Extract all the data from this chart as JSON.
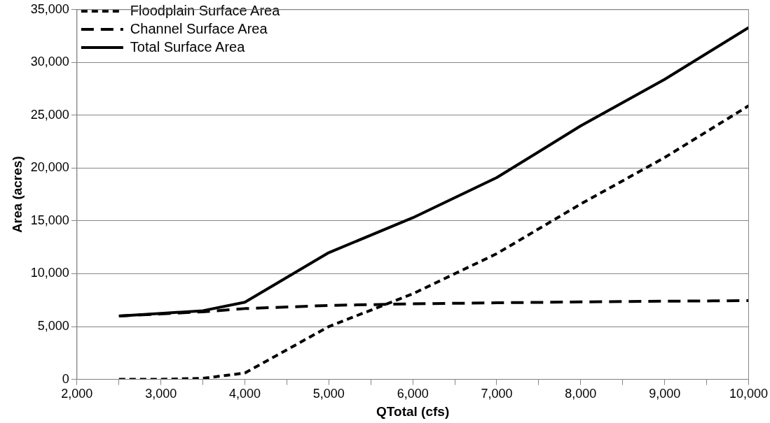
{
  "chart_data": {
    "type": "line",
    "xlabel": "QTotal (cfs)",
    "ylabel": "Area (acres)",
    "x": [
      2500,
      3000,
      3500,
      4000,
      5000,
      6000,
      7000,
      8000,
      9000,
      10000
    ],
    "series": [
      {
        "name": "Floodplain Surface Area",
        "color": "#000000",
        "line_style": "dotted",
        "values": [
          0,
          0,
          100,
          600,
          5000,
          8100,
          11900,
          16600,
          21000,
          25900
        ]
      },
      {
        "name": "Channel Surface Area",
        "color": "#000000",
        "line_style": "dashed",
        "values": [
          6000,
          6200,
          6400,
          6700,
          7000,
          7150,
          7250,
          7330,
          7400,
          7450
        ]
      },
      {
        "name": "Total Surface Area",
        "color": "#000000",
        "line_style": "solid",
        "values": [
          6000,
          6250,
          6500,
          7300,
          12000,
          15300,
          19100,
          24000,
          28400,
          33300
        ]
      }
    ],
    "xlim": [
      2000,
      10000
    ],
    "xticks": [
      {
        "value": 2000,
        "label": "2,000"
      },
      {
        "value": 2500,
        "label": null
      },
      {
        "value": 3000,
        "label": "3,000"
      },
      {
        "value": 3500,
        "label": null
      },
      {
        "value": 4000,
        "label": "4,000"
      },
      {
        "value": 4500,
        "label": null
      },
      {
        "value": 5000,
        "label": "5,000"
      },
      {
        "value": 5500,
        "label": null
      },
      {
        "value": 6000,
        "label": "6,000"
      },
      {
        "value": 6500,
        "label": null
      },
      {
        "value": 7000,
        "label": "7,000"
      },
      {
        "value": 7500,
        "label": null
      },
      {
        "value": 8000,
        "label": "8,000"
      },
      {
        "value": 8500,
        "label": null
      },
      {
        "value": 9000,
        "label": "9,000"
      },
      {
        "value": 9500,
        "label": null
      },
      {
        "value": 10000,
        "label": "10,000"
      }
    ],
    "ylim": [
      0,
      35000
    ],
    "yticks": [
      0,
      {
        "value": 5000,
        "label": "5,000"
      },
      {
        "value": 10000,
        "label": "10,000"
      },
      {
        "value": 15000,
        "label": "15,000"
      },
      {
        "value": 20000,
        "label": "20,000"
      },
      {
        "value": 25000,
        "label": "25,000"
      },
      {
        "value": 30000,
        "label": "30,000"
      },
      {
        "value": 35000,
        "label": "35,000"
      }
    ],
    "grid": "y",
    "legend": "top left",
    "marker": "none"
  }
}
